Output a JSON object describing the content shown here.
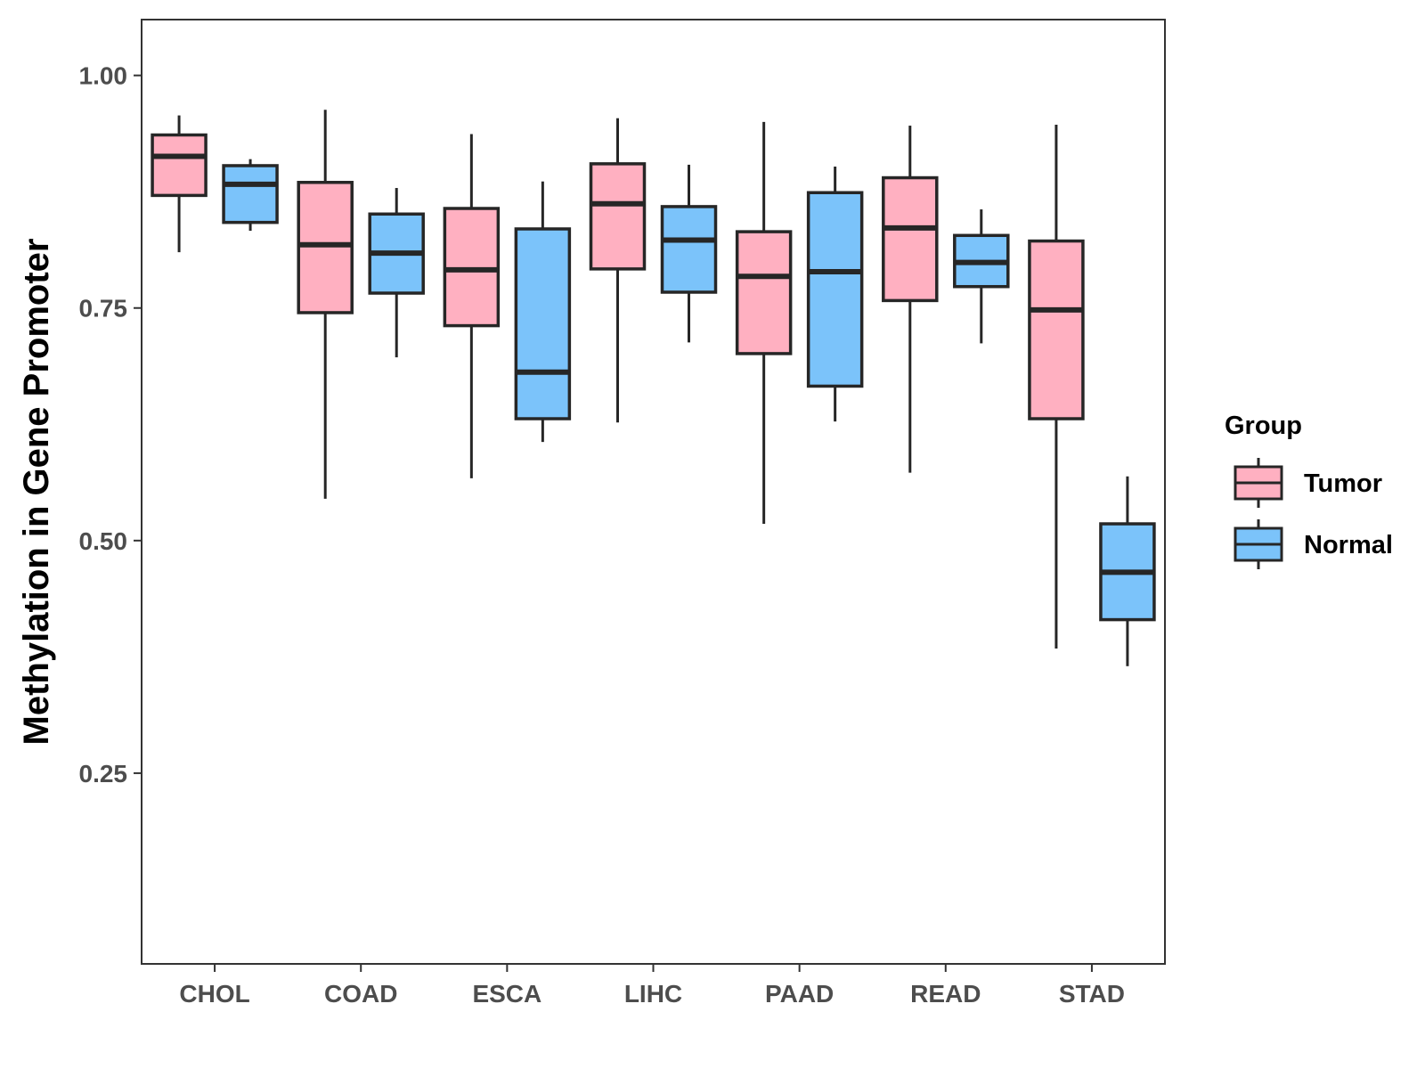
{
  "chart_data": {
    "type": "boxplot",
    "ylabel": "Methylation in Gene Promoter",
    "xlabel": "",
    "ylim": [
      0.045,
      1.06
    ],
    "yticks": [
      0.25,
      0.5,
      0.75,
      1.0
    ],
    "ytick_labels": [
      "0.25",
      "0.50",
      "0.75",
      "1.00"
    ],
    "grid": false,
    "legend": {
      "title": "Group",
      "position": "right",
      "entries": [
        {
          "name": "Tumor",
          "color": "#FFB0C1"
        },
        {
          "name": "Normal",
          "color": "#7BC3FA"
        }
      ]
    },
    "categories": [
      "CHOL",
      "COAD",
      "ESCA",
      "LIHC",
      "PAAD",
      "READ",
      "STAD"
    ],
    "series": [
      {
        "name": "Tumor",
        "color": "#FFB0C1",
        "boxes": [
          {
            "min": 0.81,
            "q1": 0.871,
            "median": 0.913,
            "q3": 0.936,
            "max": 0.957
          },
          {
            "min": 0.545,
            "q1": 0.745,
            "median": 0.818,
            "q3": 0.885,
            "max": 0.963
          },
          {
            "min": 0.567,
            "q1": 0.731,
            "median": 0.791,
            "q3": 0.857,
            "max": 0.937
          },
          {
            "min": 0.627,
            "q1": 0.792,
            "median": 0.862,
            "q3": 0.905,
            "max": 0.954
          },
          {
            "min": 0.518,
            "q1": 0.701,
            "median": 0.784,
            "q3": 0.832,
            "max": 0.95
          },
          {
            "min": 0.573,
            "q1": 0.758,
            "median": 0.836,
            "q3": 0.89,
            "max": 0.946
          },
          {
            "min": 0.384,
            "q1": 0.631,
            "median": 0.748,
            "q3": 0.822,
            "max": 0.947
          }
        ]
      },
      {
        "name": "Normal",
        "color": "#7BC3FA",
        "boxes": [
          {
            "min": 0.833,
            "q1": 0.842,
            "median": 0.883,
            "q3": 0.903,
            "max": 0.91
          },
          {
            "min": 0.697,
            "q1": 0.766,
            "median": 0.809,
            "q3": 0.851,
            "max": 0.879
          },
          {
            "min": 0.606,
            "q1": 0.631,
            "median": 0.681,
            "q3": 0.835,
            "max": 0.886
          },
          {
            "min": 0.713,
            "q1": 0.767,
            "median": 0.823,
            "q3": 0.859,
            "max": 0.904
          },
          {
            "min": 0.628,
            "q1": 0.666,
            "median": 0.789,
            "q3": 0.874,
            "max": 0.902
          },
          {
            "min": 0.712,
            "q1": 0.773,
            "median": 0.799,
            "q3": 0.828,
            "max": 0.856
          },
          {
            "min": 0.365,
            "q1": 0.415,
            "median": 0.466,
            "q3": 0.518,
            "max": 0.569
          }
        ]
      }
    ]
  }
}
